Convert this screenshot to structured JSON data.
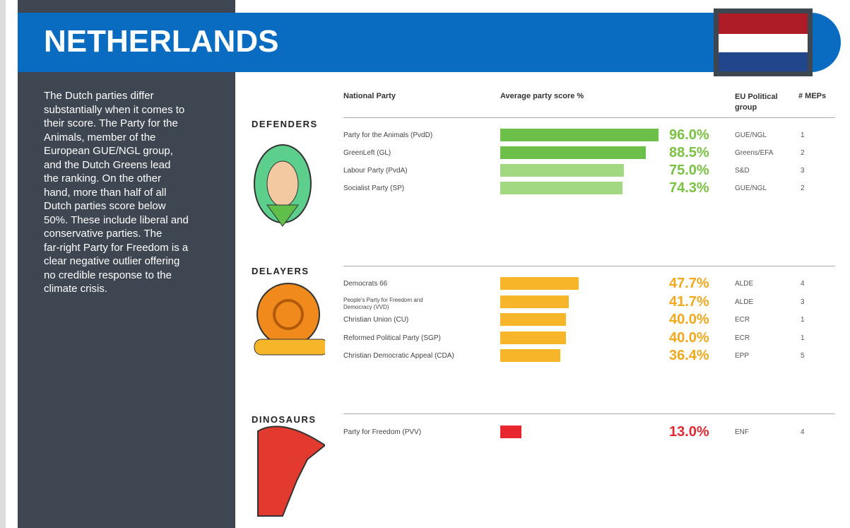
{
  "header": {
    "title": "NETHERLANDS"
  },
  "intro": {
    "lines": [
      "The Dutch parties differ",
      "substantially when it comes to",
      "their score. The Party for the",
      "Animals, member of the",
      "European GUE/NGL group,",
      "and the Dutch Greens lead",
      "the ranking. On the other",
      "hand, more than half of all",
      "Dutch parties score below",
      "50%. These include liberal and",
      "conservative parties. The",
      "far-right Party for Freedom is a",
      "clear negative outlier offering",
      "no credible response to the",
      "climate crisis."
    ]
  },
  "table": {
    "columns": [
      "National Party",
      "Average party score %",
      "EU Political group",
      "# MEPs"
    ],
    "groups": [
      {
        "name": "DEFENDERS",
        "label_color": "#7bc143",
        "rows": [
          {
            "party": "Party for the Animals (PvdD)",
            "score": 96.0,
            "score_label": "96.0%",
            "color": "#6cc04a",
            "eu_group": "GUE/NGL",
            "meps": "1"
          },
          {
            "party": "GreenLeft (GL)",
            "score": 88.5,
            "score_label": "88.5%",
            "color": "#6cc04a",
            "eu_group": "Greens/EFA",
            "meps": "2"
          },
          {
            "party": "Labour Party (PvdA)",
            "score": 75.0,
            "score_label": "75.0%",
            "color": "#a3d883",
            "eu_group": "S&D",
            "meps": "3"
          },
          {
            "party": "Socialist Party (SP)",
            "score": 74.3,
            "score_label": "74.3%",
            "color": "#a3d883",
            "eu_group": "GUE/NGL",
            "meps": "2"
          }
        ]
      },
      {
        "name": "DELAYERS",
        "label_color": "#f0a81c",
        "rows": [
          {
            "party": "Democrats 66",
            "score": 47.7,
            "score_label": "47.7%",
            "color": "#f7b52a",
            "eu_group": "ALDE",
            "meps": "4"
          },
          {
            "party": "People's Party for Freedom and Democracy (VVD)",
            "score": 41.7,
            "score_label": "41.7%",
            "color": "#f7b52a",
            "eu_group": "ALDE",
            "meps": "3"
          },
          {
            "party": "Christian Union (CU)",
            "score": 40.0,
            "score_label": "40.0%",
            "color": "#f7b52a",
            "eu_group": "ECR",
            "meps": "1"
          },
          {
            "party": "Reformed Political Party (SGP)",
            "score": 40.0,
            "score_label": "40.0%",
            "color": "#f7b52a",
            "eu_group": "ECR",
            "meps": "1"
          },
          {
            "party": "Christian Democratic Appeal (CDA)",
            "score": 36.4,
            "score_label": "36.4%",
            "color": "#f7b52a",
            "eu_group": "EPP",
            "meps": "5"
          }
        ]
      },
      {
        "name": "DINOSAURS",
        "label_color": "#e02a33",
        "rows": [
          {
            "party": "Party for Freedom (PVV)",
            "score": 13.0,
            "score_label": "13.0%",
            "color": "#e8262d",
            "eu_group": "ENF",
            "meps": "4"
          }
        ]
      }
    ]
  }
}
